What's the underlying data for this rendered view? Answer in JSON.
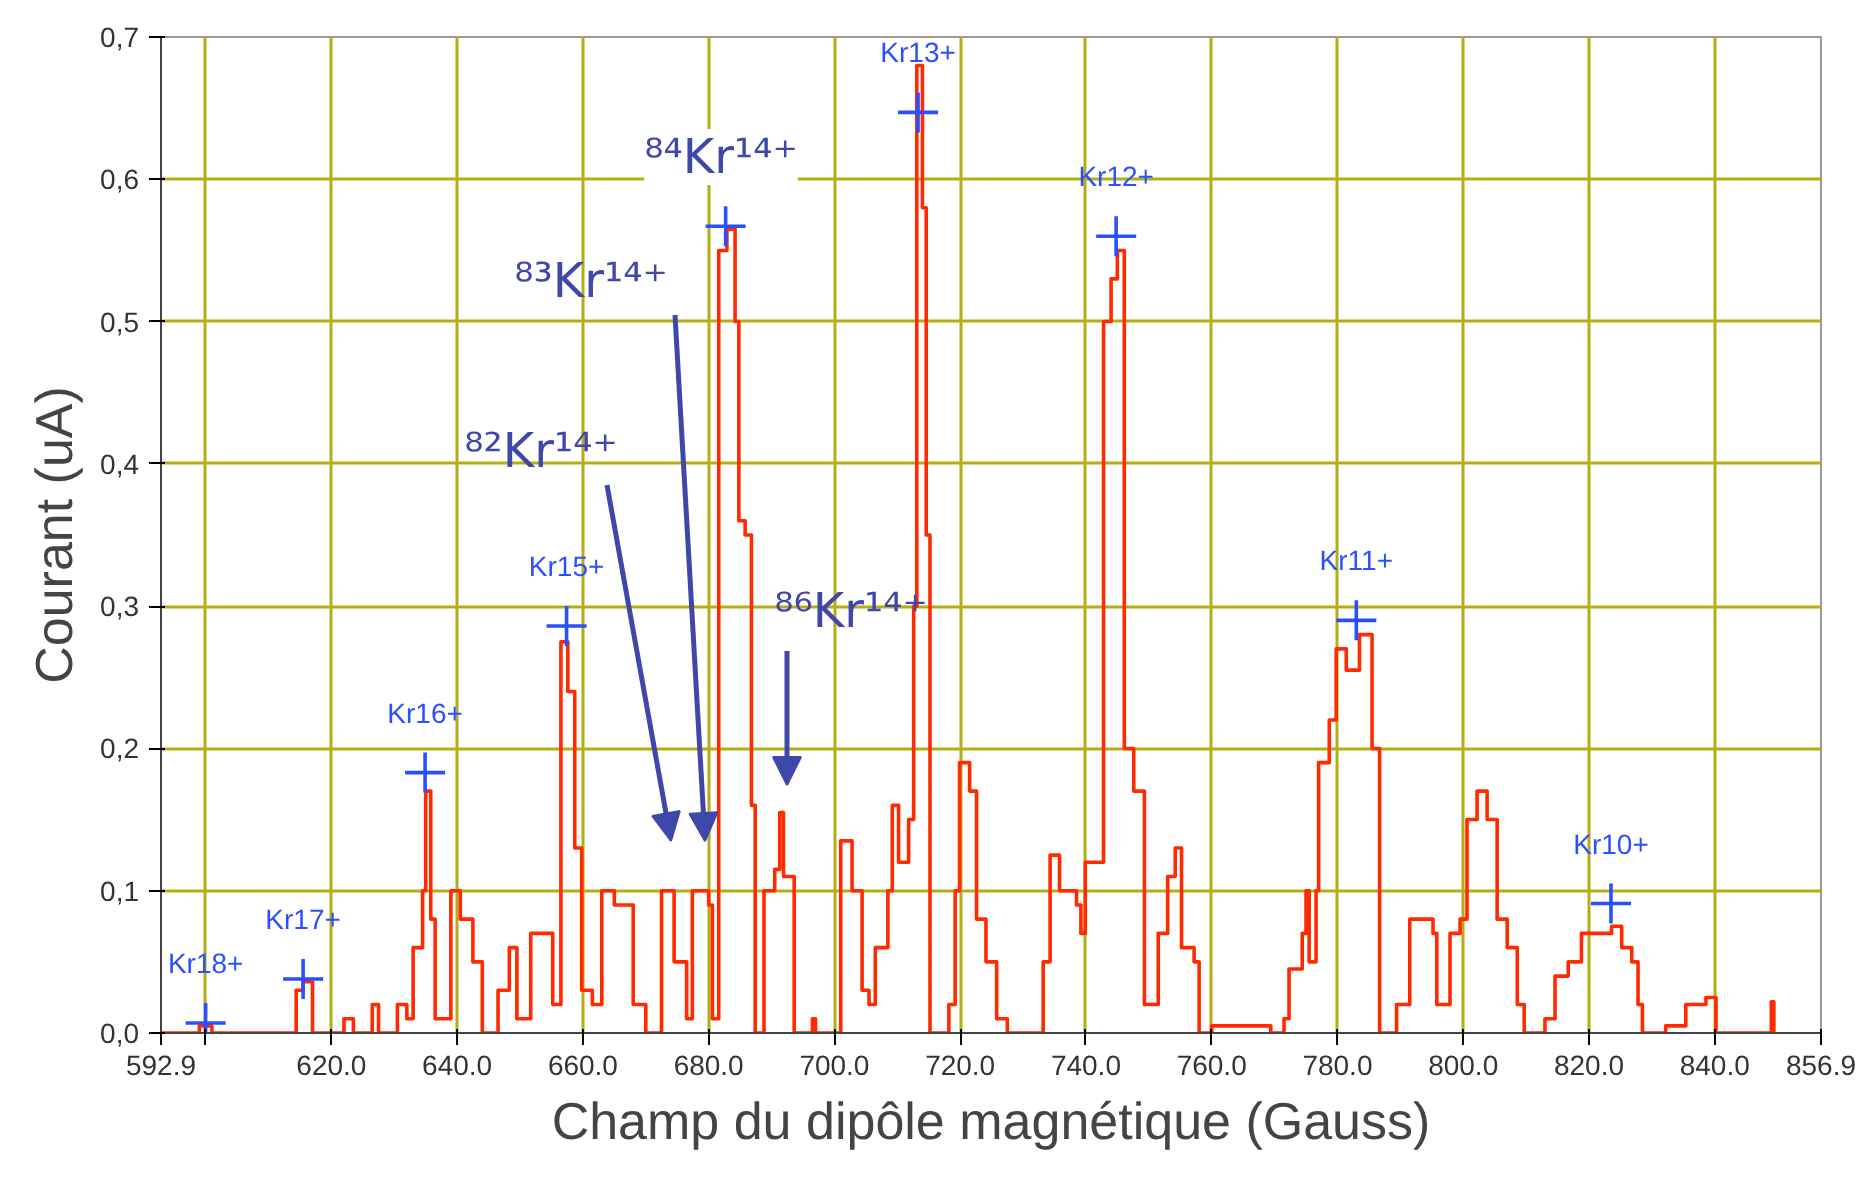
{
  "chart_data": {
    "type": "step",
    "xlabel": "Champ du dipôle magnétique (Gauss)",
    "ylabel": "Courant (uA)",
    "xlim": [
      592.9,
      856.9
    ],
    "ylim": [
      0,
      0.7
    ],
    "xticks": [
      {
        "value": 592.9,
        "label": "592.9"
      },
      {
        "value": 600,
        "label": null
      },
      {
        "value": 620,
        "label": "620.0"
      },
      {
        "value": 640,
        "label": "640.0"
      },
      {
        "value": 660,
        "label": "660.0"
      },
      {
        "value": 680,
        "label": "680.0"
      },
      {
        "value": 700,
        "label": "700.0"
      },
      {
        "value": 720,
        "label": "720.0"
      },
      {
        "value": 740,
        "label": "740.0"
      },
      {
        "value": 760,
        "label": "760.0"
      },
      {
        "value": 780,
        "label": "780.0"
      },
      {
        "value": 800,
        "label": "800.0"
      },
      {
        "value": 820,
        "label": "820.0"
      },
      {
        "value": 840,
        "label": "840.0"
      },
      {
        "value": 856.9,
        "label": "856.9"
      }
    ],
    "yticks": [
      {
        "value": 0,
        "label": "0,0"
      },
      {
        "value": 0.1,
        "label": "0,1"
      },
      {
        "value": 0.2,
        "label": "0,2"
      },
      {
        "value": 0.3,
        "label": "0,3"
      },
      {
        "value": 0.4,
        "label": "0,4"
      },
      {
        "value": 0.5,
        "label": "0,5"
      },
      {
        "value": 0.6,
        "label": "0,6"
      },
      {
        "value": 0.7,
        "label": "0,7"
      }
    ],
    "grid": true,
    "series": [
      {
        "color": "#ff2a00",
        "x": [
          592.9,
          599,
          601,
          614.4,
          615.5,
          617,
          622,
          623.5,
          626.5,
          627.5,
          630.5,
          632,
          633,
          634.5,
          635,
          635.8,
          636.5,
          639,
          640.5,
          642.5,
          644,
          646.5,
          648.3,
          649.5,
          651.7,
          654,
          655.2,
          656.5,
          657.6,
          658.7,
          659.8,
          661.5,
          663,
          665,
          668,
          670,
          672.5,
          674.5,
          676.5,
          677.4,
          679,
          680,
          680.6,
          681.6,
          682.9,
          684.2,
          684.8,
          685.8,
          686.8,
          687.4,
          688.8,
          690.5,
          691.3,
          691.9,
          693.6,
          696.5,
          697,
          701,
          702.8,
          704.4,
          705.5,
          706.5,
          708.5,
          709.2,
          710.2,
          711.8,
          712.6,
          713.1,
          714,
          714.6,
          715.2,
          718.2,
          719.2,
          719.9,
          721.5,
          722.6,
          724.1,
          725.8,
          727.5,
          733.2,
          734.3,
          735.8,
          738.5,
          739.2,
          739.9,
          741.2,
          742.8,
          744,
          745,
          746.1,
          747.6,
          749.3,
          751.5,
          753,
          754.2,
          755.2,
          757.2,
          758,
          760,
          769.4,
          771.5,
          772.3,
          774.4,
          775,
          775.5,
          776.6,
          777,
          778.7,
          779.8,
          781.4,
          783.5,
          785.5,
          786.7,
          789.4,
          791.5,
          793.2,
          795.2,
          795.8,
          797.9,
          799.5,
          800.6,
          802.2,
          803.8,
          805.4,
          807,
          808.6,
          809.7,
          813,
          814.6,
          816.7,
          818.8,
          821.5,
          823.6,
          825.2,
          826.8,
          827.8,
          828.5,
          832.2,
          835.4,
          838.6,
          840.2,
          849,
          849.4
        ],
        "values": [
          0,
          0.005,
          0,
          0.03,
          0.036,
          0,
          0.01,
          0,
          0.02,
          0,
          0.02,
          0.01,
          0.06,
          0.1,
          0.17,
          0.08,
          0.01,
          0.1,
          0.08,
          0.05,
          0,
          0.03,
          0.06,
          0.01,
          0.07,
          0.07,
          0.02,
          0.275,
          0.24,
          0.13,
          0.03,
          0.02,
          0.1,
          0.09,
          0.02,
          0,
          0.1,
          0.05,
          0.01,
          0.1,
          0.1,
          0.09,
          0.01,
          0.55,
          0.565,
          0.5,
          0.36,
          0.35,
          0.16,
          0,
          0.1,
          0.115,
          0.155,
          0.11,
          0,
          0.01,
          0,
          0.135,
          0.1,
          0.03,
          0.02,
          0.06,
          0.1,
          0.16,
          0.12,
          0.15,
          0.3,
          0.68,
          0.58,
          0.35,
          0,
          0.02,
          0.1,
          0.19,
          0.17,
          0.08,
          0.05,
          0.01,
          0,
          0.05,
          0.125,
          0.1,
          0.09,
          0.07,
          0.12,
          0.12,
          0.5,
          0.53,
          0.55,
          0.2,
          0.17,
          0.02,
          0.07,
          0.11,
          0.13,
          0.06,
          0.05,
          0,
          0.005,
          0,
          0.01,
          0.045,
          0.07,
          0.1,
          0.05,
          0.1,
          0.19,
          0.22,
          0.27,
          0.255,
          0.28,
          0.2,
          0,
          0.02,
          0.08,
          0.08,
          0.07,
          0.02,
          0.07,
          0.08,
          0.15,
          0.17,
          0.15,
          0.08,
          0.06,
          0.02,
          0,
          0.01,
          0.04,
          0.05,
          0.07,
          0.07,
          0.075,
          0.06,
          0.05,
          0.02,
          0,
          0.005,
          0.02,
          0.025,
          0,
          0.022,
          0
        ]
      },
      {
        "type": "scatter",
        "color": "#2a4fff",
        "marker": "cross",
        "x": [
          600,
          615.5,
          634.9,
          657.4,
          682.7,
          713.3,
          744.8,
          783,
          823.5
        ],
        "values": [
          0.007,
          0.038,
          0.183,
          0.286,
          0.567,
          0.647,
          0.56,
          0.29,
          0.091
        ],
        "value_labels": [
          "Kr18+",
          "Kr17+",
          "Kr16+",
          "Kr15+",
          null,
          "Kr13+",
          "Kr12+",
          "Kr11+",
          "Kr10+"
        ]
      }
    ],
    "annotations": [
      "⁸²Kr¹⁴⁺",
      "⁸³Kr¹⁴⁺",
      "⁸⁴Kr¹⁴⁺",
      "⁸⁶Kr¹⁴⁺"
    ]
  }
}
